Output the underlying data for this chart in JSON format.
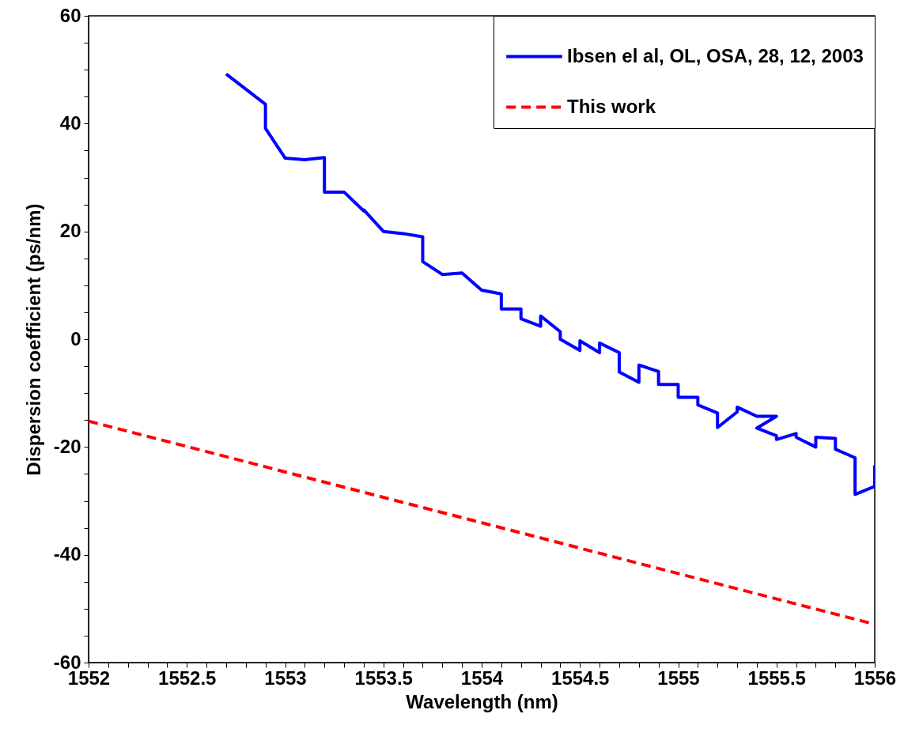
{
  "chart_data": {
    "type": "line",
    "xlabel": "Wavelength (nm)",
    "ylabel": "Dispersion coefficient (ps/nm)",
    "legend": "top right",
    "xlim": [
      1552,
      1556
    ],
    "ylim": [
      -60,
      60
    ],
    "xticks": [
      1552,
      {
        "value": 1552.1,
        "label": null
      },
      {
        "value": 1552.2,
        "label": null
      },
      {
        "value": 1552.3,
        "label": null
      },
      {
        "value": 1552.4,
        "label": null
      },
      1552.5,
      {
        "value": 1552.6,
        "label": null
      },
      {
        "value": 1552.7,
        "label": null
      },
      {
        "value": 1552.8,
        "label": null
      },
      {
        "value": 1552.9,
        "label": null
      },
      1553,
      {
        "value": 1553.1,
        "label": null
      },
      {
        "value": 1553.2,
        "label": null
      },
      {
        "value": 1553.3,
        "label": null
      },
      {
        "value": 1553.4,
        "label": null
      },
      1553.5,
      {
        "value": 1553.6,
        "label": null
      },
      {
        "value": 1553.7,
        "label": null
      },
      {
        "value": 1553.8,
        "label": null
      },
      {
        "value": 1553.9,
        "label": null
      },
      1554,
      {
        "value": 1554.1,
        "label": null
      },
      {
        "value": 1554.2,
        "label": null
      },
      {
        "value": 1554.3,
        "label": null
      },
      {
        "value": 1554.4,
        "label": null
      },
      1554.5,
      {
        "value": 1554.6,
        "label": null
      },
      {
        "value": 1554.7,
        "label": null
      },
      {
        "value": 1554.8,
        "label": null
      },
      {
        "value": 1554.9,
        "label": null
      },
      1555,
      {
        "value": 1555.1,
        "label": null
      },
      {
        "value": 1555.2,
        "label": null
      },
      {
        "value": 1555.3,
        "label": null
      },
      {
        "value": 1555.4,
        "label": null
      },
      1555.5,
      {
        "value": 1555.6,
        "label": null
      },
      {
        "value": 1555.7,
        "label": null
      },
      {
        "value": 1555.8,
        "label": null
      },
      {
        "value": 1555.9,
        "label": null
      },
      1556
    ],
    "yticks": [
      -60,
      {
        "value": -55,
        "label": null
      },
      {
        "value": -50,
        "label": null
      },
      {
        "value": -45,
        "label": null
      },
      -40,
      {
        "value": -35,
        "label": null
      },
      {
        "value": -30,
        "label": null
      },
      {
        "value": -25,
        "label": null
      },
      -20,
      {
        "value": -15,
        "label": null
      },
      {
        "value": -10,
        "label": null
      },
      {
        "value": -5,
        "label": null
      },
      0,
      {
        "value": 5,
        "label": null
      },
      {
        "value": 10,
        "label": null
      },
      {
        "value": 15,
        "label": null
      },
      20,
      {
        "value": 25,
        "label": null
      },
      {
        "value": 30,
        "label": null
      },
      {
        "value": 35,
        "label": null
      },
      40,
      {
        "value": 45,
        "label": null
      },
      {
        "value": 50,
        "label": null
      },
      {
        "value": 55,
        "label": null
      },
      60
    ],
    "series": [
      {
        "name": "Ibsen el al, OL, OSA, 28, 12, 2003",
        "color": "#0000ff",
        "line_style": "solid",
        "x": [
          1552.7,
          1552.9,
          1552.9,
          1553.0,
          1553.1,
          1553.2,
          1553.2,
          1553.3,
          1553.4,
          1553.4,
          1553.5,
          1553.6,
          1553.7,
          1553.7,
          1553.8,
          1553.9,
          1554.0,
          1554.1,
          1554.1,
          1554.2,
          1554.2,
          1554.3,
          1554.3,
          1554.4,
          1554.4,
          1554.5,
          1554.5,
          1554.6,
          1554.6,
          1554.7,
          1554.7,
          1554.8,
          1554.8,
          1554.9,
          1554.9,
          1555.0,
          1555.0,
          1555.1,
          1555.1,
          1555.2,
          1555.2,
          1555.3,
          1555.3,
          1555.4,
          1555.5,
          1555.4,
          1555.5,
          1555.5,
          1555.6,
          1555.6,
          1555.7,
          1555.7,
          1555.8,
          1555.8,
          1555.9,
          1555.9,
          1556.0,
          1556.0
        ],
        "values": [
          49.2,
          43.6,
          39.1,
          33.6,
          33.3,
          33.7,
          27.3,
          27.3,
          23.8,
          24.0,
          20.0,
          19.6,
          19.0,
          14.4,
          12.0,
          12.3,
          9.1,
          8.4,
          5.6,
          5.6,
          3.8,
          2.4,
          4.3,
          1.4,
          0,
          -2.1,
          -0.3,
          -2.5,
          -0.7,
          -2.5,
          -6.1,
          -8.0,
          -4.8,
          -6.0,
          -8.4,
          -8.4,
          -10.8,
          -10.8,
          -12.2,
          -13.7,
          -16.4,
          -13.5,
          -12.6,
          -14.3,
          -14.3,
          -16.5,
          -17.9,
          -18.6,
          -17.5,
          -18.2,
          -20.0,
          -18.2,
          -18.4,
          -20.4,
          -22.0,
          -28.8,
          -27.3,
          -23.4
        ]
      },
      {
        "name": "This work",
        "color": "#ff0000",
        "line_style": "dashed",
        "x": [
          1552,
          1556
        ],
        "values": [
          -15.2,
          -52.9
        ]
      }
    ]
  }
}
